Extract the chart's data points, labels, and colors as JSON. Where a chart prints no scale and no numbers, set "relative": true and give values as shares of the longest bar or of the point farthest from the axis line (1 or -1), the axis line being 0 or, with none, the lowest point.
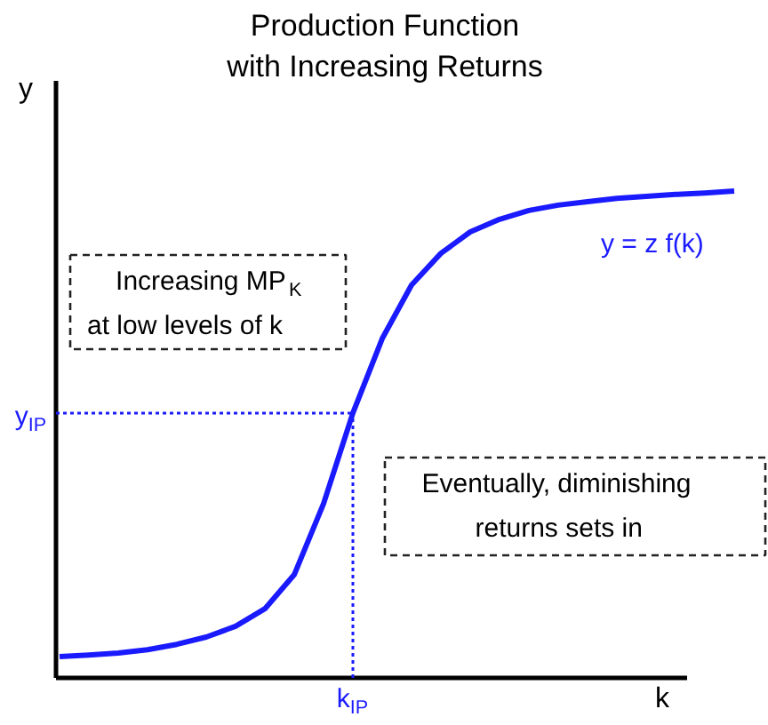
{
  "chart_data": {
    "type": "line",
    "relative": true,
    "title": "Production Function\nwith Increasing Returns",
    "xlabel": "k",
    "ylabel": "y",
    "categories": [
      null,
      null,
      null,
      null,
      null,
      null,
      null,
      null,
      null,
      null,
      null,
      null,
      null,
      null,
      null,
      null,
      null,
      null,
      null,
      null,
      null,
      null,
      null,
      null
    ],
    "series": [
      {
        "name": "y = z f(k)",
        "color": "#1a1aff",
        "values": [
          0.044,
          0.047,
          0.051,
          0.058,
          0.069,
          0.084,
          0.106,
          0.142,
          0.212,
          0.358,
          0.544,
          0.697,
          0.807,
          0.872,
          0.916,
          0.942,
          0.96,
          0.971,
          0.978,
          0.985,
          0.989,
          0.993,
          0.996,
          1.0
        ]
      }
    ],
    "annotations": [
      "Increasing MP$_{K}$\nat low levels of k",
      "Eventually, diminishing\nreturns sets in",
      "y$_{IP}$",
      "k$_{IP}$"
    ],
    "ref_lines": [
      {
        "axis": "y",
        "value": 0.544,
        "line_style": "dotted",
        "color": "#1a1aff"
      }
    ]
  }
}
